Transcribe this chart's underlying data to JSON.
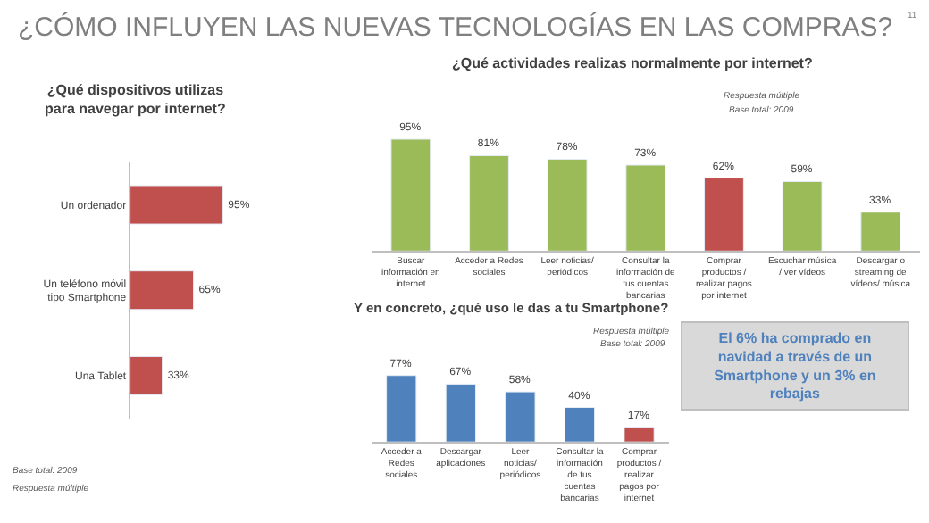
{
  "chart_data": [
    {
      "type": "other",
      "title": "¿CÓMO INFLUYEN LAS NUEVAS TECNOLOGÍAS EN LAS COMPRAS?",
      "annotations": [
        "11",
        "El 6% ha comprado en navidad a través de un Smartphone y un 3% en rebajas"
      ]
    },
    {
      "type": "bar",
      "orientation": "horizontal",
      "title": "¿Qué dispositivos utilizas para navegar por internet?",
      "categories": [
        "Un ordenador",
        "Un teléfono móvil tipo Smartphone",
        "Una Tablet"
      ],
      "values": [
        95,
        65,
        33
      ],
      "value_labels": [
        "95%",
        "65%",
        "33%"
      ],
      "colors": [
        "#c0504d",
        "#c0504d",
        "#c0504d"
      ],
      "annotations": [
        "Base total: 2009",
        "Respuesta múltiple"
      ]
    },
    {
      "type": "bar",
      "title": "¿Qué actividades realizas normalmente por internet?",
      "categories": [
        "Buscar información en internet",
        "Acceder a Redes sociales",
        "Leer noticias/ periódicos",
        "Consultar la información de tus cuentas bancarias",
        "Comprar productos / realizar pagos por internet",
        "Escuchar música / ver vídeos",
        "Descargar o streaming de vídeos/ música"
      ],
      "values": [
        95,
        81,
        78,
        73,
        62,
        59,
        33
      ],
      "value_labels": [
        "95%",
        "81%",
        "78%",
        "73%",
        "62%",
        "59%",
        "33%"
      ],
      "colors": [
        "#9bbb59",
        "#9bbb59",
        "#9bbb59",
        "#9bbb59",
        "#c0504d",
        "#9bbb59",
        "#9bbb59"
      ],
      "annotations": [
        "Respuesta múltiple",
        "Base total: 2009"
      ]
    },
    {
      "type": "bar",
      "title": "Y en concreto, ¿qué uso le das a tu Smartphone?",
      "categories": [
        "Acceder a Redes sociales",
        "Descargar aplicaciones",
        "Leer noticias/ periódicos",
        "Consultar la información de tus cuentas bancarias",
        "Comprar productos / realizar pagos por internet"
      ],
      "values": [
        77,
        67,
        58,
        40,
        17
      ],
      "value_labels": [
        "77%",
        "67%",
        "58%",
        "40%",
        "17%"
      ],
      "colors": [
        "#4f81bd",
        "#4f81bd",
        "#4f81bd",
        "#4f81bd",
        "#c0504d"
      ],
      "annotations": [
        "Respuesta múltiple",
        "Base total: 2009"
      ]
    }
  ]
}
